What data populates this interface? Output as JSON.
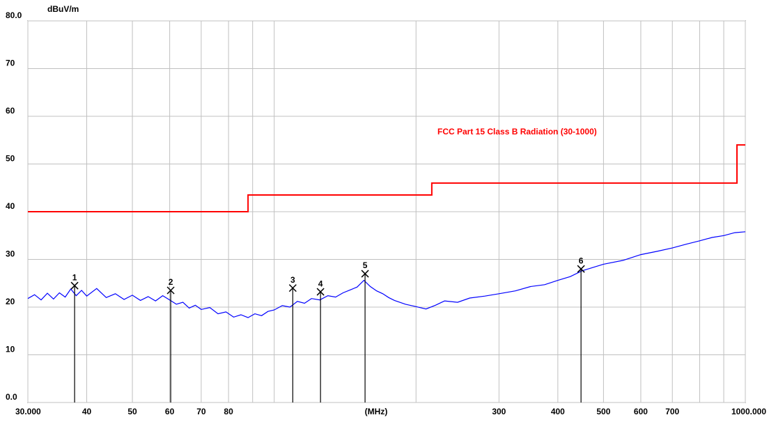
{
  "chart_data": {
    "type": "line",
    "y_label": "dBuV/m",
    "x_label": "(MHz)",
    "log_x": true,
    "grid": true,
    "xlim": [
      30,
      1000
    ],
    "ylim": [
      0,
      80
    ],
    "yticks": [
      {
        "value": 0,
        "label": "0.0"
      },
      10,
      20,
      30,
      40,
      50,
      60,
      70,
      {
        "value": 80,
        "label": "80.0"
      }
    ],
    "xticks": [
      {
        "value": 30,
        "label": "30.000"
      },
      40,
      50,
      60,
      70,
      80,
      {
        "value": 90,
        "label": null
      },
      {
        "value": 100,
        "label": null
      },
      {
        "value": 200,
        "label": null
      },
      300,
      400,
      500,
      600,
      700,
      {
        "value": 800,
        "label": null
      },
      {
        "value": 900,
        "label": null
      },
      {
        "value": 1000,
        "label": "1000.000"
      }
    ],
    "series": [
      {
        "name": "FCC Part 15 Class B Radiation (30-1000)",
        "color": "#ff0000",
        "x": [
          30,
          88,
          88,
          216,
          216,
          960,
          960,
          1000
        ],
        "values": [
          40,
          40,
          43.5,
          43.5,
          46,
          46,
          54,
          54
        ]
      },
      {
        "color": "#0000ff",
        "x": [
          30,
          31,
          32,
          33,
          34,
          35,
          36,
          37,
          38,
          39,
          40,
          42,
          44,
          46,
          48,
          50,
          52,
          54,
          56,
          58,
          60,
          62,
          64,
          66,
          68,
          70,
          73,
          76,
          79,
          82,
          85,
          88,
          91,
          94,
          97,
          100,
          104,
          108,
          112,
          116,
          120,
          125,
          130,
          135,
          140,
          145,
          150,
          155,
          160,
          165,
          170,
          175,
          180,
          190,
          200,
          210,
          220,
          230,
          245,
          260,
          280,
          300,
          325,
          350,
          375,
          400,
          425,
          450,
          475,
          500,
          550,
          600,
          650,
          700,
          750,
          800,
          850,
          900,
          950,
          1000
        ],
        "values": [
          21.8,
          22.6,
          21.5,
          22.9,
          21.7,
          23.0,
          22.1,
          23.8,
          22.4,
          23.5,
          22.3,
          23.9,
          22.0,
          22.8,
          21.6,
          22.5,
          21.4,
          22.2,
          21.3,
          22.4,
          21.5,
          20.6,
          21.0,
          19.8,
          20.4,
          19.5,
          19.9,
          18.6,
          19.0,
          17.9,
          18.4,
          17.8,
          18.6,
          18.2,
          19.1,
          19.4,
          20.3,
          20.0,
          21.2,
          20.8,
          21.8,
          21.5,
          22.4,
          22.1,
          23.0,
          23.6,
          24.2,
          25.6,
          24.3,
          23.4,
          22.8,
          22.0,
          21.4,
          20.6,
          20.1,
          19.6,
          20.4,
          21.3,
          21.0,
          21.9,
          22.3,
          22.8,
          23.4,
          24.3,
          24.7,
          25.6,
          26.4,
          27.6,
          28.3,
          29.0,
          29.8,
          31.0,
          31.7,
          32.4,
          33.2,
          33.9,
          34.6,
          35.0,
          35.6,
          35.8
        ]
      }
    ],
    "markers": {
      "labels": [
        "1",
        "2",
        "3",
        "4",
        "5",
        "6"
      ],
      "x": [
        37.7,
        60.3,
        109.5,
        125.4,
        155.9,
        448
      ],
      "values": [
        24.5,
        23.5,
        24,
        23.2,
        27,
        28
      ]
    }
  }
}
